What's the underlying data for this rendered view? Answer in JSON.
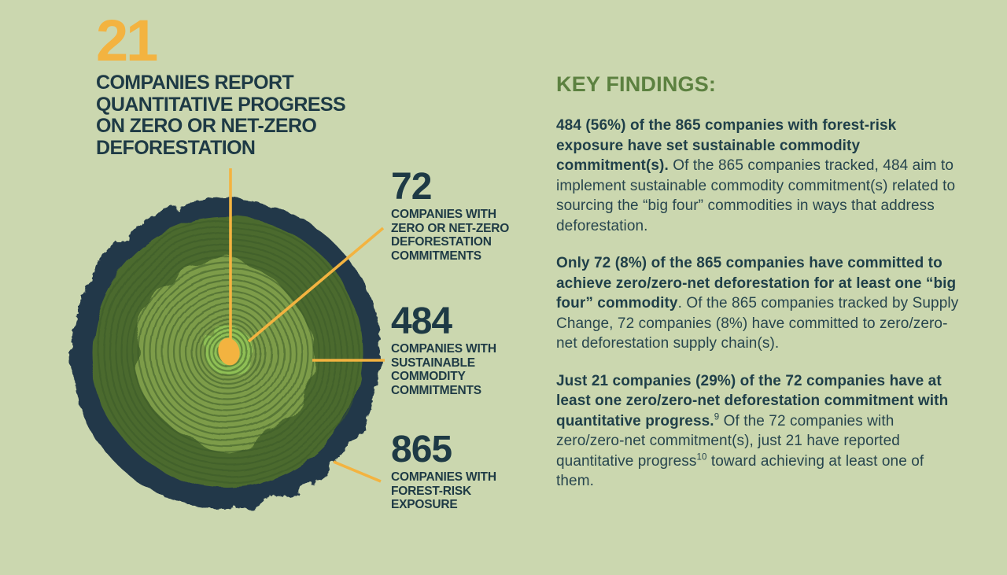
{
  "illustration": "tree-ring-cross-section",
  "colors": {
    "background": "#cbd7af",
    "accent_gold": "#f3b340",
    "dark_navy_text": "#1e3a45",
    "body_text": "#27454e",
    "heading_green": "#5c8140",
    "bark": "#233748",
    "wood_dark": "#4b6a2e",
    "wood_mid": "#7d9c49",
    "wood_light": "#8fbf55",
    "ring_line": "#3b5926"
  },
  "headline": {
    "number": "21",
    "lines": [
      "COMPANIES REPORT",
      "QUANTITATIVE PROGRESS",
      "ON ZERO OR NET-ZERO",
      "DEFORESTATION"
    ]
  },
  "callouts": [
    {
      "number": "72",
      "lines": [
        "COMPANIES WITH",
        "ZERO OR NET-ZERO",
        "DEFORESTATION",
        "COMMITMENTS"
      ]
    },
    {
      "number": "484",
      "lines": [
        "COMPANIES WITH",
        "SUSTAINABLE",
        "COMMODITY",
        "COMMITMENTS"
      ]
    },
    {
      "number": "865",
      "lines": [
        "COMPANIES WITH",
        "FOREST-RISK",
        "EXPOSURE"
      ]
    }
  ],
  "key_findings": {
    "heading": "KEY FINDINGS:",
    "p1": {
      "bold": "484 (56%) of the 865 companies with forest-risk exposure have set sustainable commodity commitment(s).",
      "rest": " Of the 865 companies tracked, 484 aim to implement sustainable commodity commitment(s) related to sourcing the “big four” commodities in ways that address deforestation."
    },
    "p2": {
      "bold": "Only 72 (8%) of the 865 companies have committed to achieve zero/zero-net deforestation for at least one “big four” commodity",
      "rest": ". Of the 865 companies tracked by Supply Change, 72 companies (8%) have committed to zero/zero-net deforestation supply chain(s)."
    },
    "p3": {
      "bold": "Just 21 companies (29%) of the 72 companies have at least one zero/zero-net deforestation commitment with quantitative progress.",
      "sup_a": "9",
      "mid": " Of the 72 companies with zero/zero-net commitment(s), just 21 have reported quantitative progress",
      "sup_b": "10",
      "end": " toward achieving at least one of them."
    }
  }
}
